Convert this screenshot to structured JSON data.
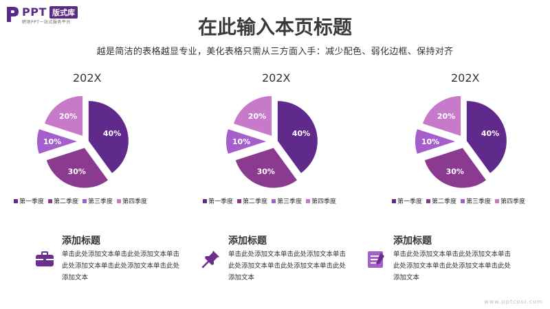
{
  "logo": {
    "brand": "PPT",
    "badge": "版式库",
    "tagline": "职场PPT一站式服务平台"
  },
  "title": "在此输入本页标题",
  "subtitle": "越是简洁的表格越显专业，美化表格只需从三方面入手：减少配色、弱化边框、保持对齐",
  "colors": {
    "q1": "#5f2a8c",
    "q2": "#8a3a8f",
    "q3": "#a45fcc",
    "q4": "#c77ac9"
  },
  "chart_data": [
    {
      "type": "pie",
      "title": "202X",
      "categories": [
        "第一季度",
        "第二季度",
        "第三季度",
        "第四季度"
      ],
      "values": [
        40,
        30,
        10,
        20
      ],
      "labels": [
        "40%",
        "30%",
        "10%",
        "20%"
      ],
      "legend": "bottom"
    },
    {
      "type": "pie",
      "title": "202X",
      "categories": [
        "第一季度",
        "第二季度",
        "第三季度",
        "第四季度"
      ],
      "values": [
        40,
        30,
        10,
        20
      ],
      "labels": [
        "40%",
        "30%",
        "10%",
        "20%"
      ],
      "legend": "bottom"
    },
    {
      "type": "pie",
      "title": "202X",
      "categories": [
        "第一季度",
        "第二季度",
        "第三季度",
        "第四季度"
      ],
      "values": [
        40,
        30,
        10,
        20
      ],
      "labels": [
        "40%",
        "30%",
        "10%",
        "20%"
      ],
      "legend": "bottom"
    }
  ],
  "features": [
    {
      "icon": "briefcase-icon",
      "title": "添加标题",
      "desc": "单击此处添加文本单击此处添加文本单击此处添加文本单击此处添加文本单击此处添加文本"
    },
    {
      "icon": "pushpin-icon",
      "title": "添加标题",
      "desc": "单击此处添加文本单击此处添加文本单击此处添加文本单击此处添加文本单击此处添加文本"
    },
    {
      "icon": "notepad-icon",
      "title": "添加标题",
      "desc": "单击此处添加文本单击此处添加文本单击此处添加文本单击此处添加文本单击此处添加文本"
    }
  ],
  "watermark": "www.pptcool.com"
}
